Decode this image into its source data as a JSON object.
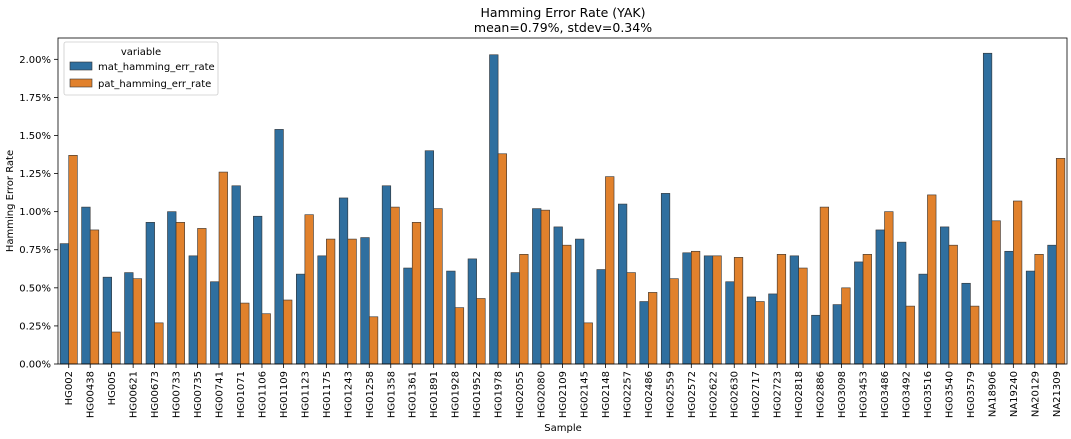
{
  "chart_data": {
    "type": "bar",
    "title": "Hamming Error Rate (YAK)",
    "subtitle": "mean=0.79%, stdev=0.34%",
    "xlabel": "Sample",
    "ylabel": "Hamming Error Rate",
    "ylim": [
      0,
      2.14
    ],
    "yticks": [
      "0.00%",
      "0.25%",
      "0.50%",
      "0.75%",
      "1.00%",
      "1.25%",
      "1.50%",
      "1.75%",
      "2.00%"
    ],
    "ytick_values": [
      0,
      0.25,
      0.5,
      0.75,
      1.0,
      1.25,
      1.5,
      1.75,
      2.0
    ],
    "legend": {
      "title": "variable",
      "position": "top-left"
    },
    "categories": [
      "HG002",
      "HG00438",
      "HG005",
      "HG00621",
      "HG00673",
      "HG00733",
      "HG00735",
      "HG00741",
      "HG01071",
      "HG01106",
      "HG01109",
      "HG01123",
      "HG01175",
      "HG01243",
      "HG01258",
      "HG01358",
      "HG01361",
      "HG01891",
      "HG01928",
      "HG01952",
      "HG01978",
      "HG02055",
      "HG02080",
      "HG02109",
      "HG02145",
      "HG02148",
      "HG02257",
      "HG02486",
      "HG02559",
      "HG02572",
      "HG02622",
      "HG02630",
      "HG02717",
      "HG02723",
      "HG02818",
      "HG02886",
      "HG03098",
      "HG03453",
      "HG03486",
      "HG03492",
      "HG03516",
      "HG03540",
      "HG03579",
      "NA18906",
      "NA19240",
      "NA20129",
      "NA21309"
    ],
    "series": [
      {
        "name": "mat_hamming_err_rate",
        "color": "#2f6f9f",
        "values": [
          0.79,
          1.03,
          0.57,
          0.6,
          0.93,
          1.0,
          0.71,
          0.54,
          1.17,
          0.97,
          1.54,
          0.59,
          0.71,
          1.09,
          0.83,
          1.17,
          0.63,
          1.4,
          0.61,
          0.69,
          2.03,
          0.6,
          1.02,
          0.9,
          0.82,
          0.62,
          1.05,
          0.41,
          1.12,
          0.73,
          0.71,
          0.54,
          0.44,
          0.46,
          0.71,
          0.32,
          0.39,
          0.67,
          0.88,
          0.8,
          0.59,
          0.9,
          0.53,
          2.04,
          0.74,
          0.61,
          0.78
        ]
      },
      {
        "name": "pat_hamming_err_rate",
        "color": "#e1812c",
        "values": [
          1.37,
          0.88,
          0.21,
          0.56,
          0.27,
          0.93,
          0.89,
          1.26,
          0.4,
          0.33,
          0.42,
          0.98,
          0.82,
          0.82,
          0.31,
          1.03,
          0.93,
          1.02,
          0.37,
          0.43,
          1.38,
          0.72,
          1.01,
          0.78,
          0.27,
          1.23,
          0.6,
          0.47,
          0.56,
          0.74,
          0.71,
          0.7,
          0.41,
          0.72,
          0.63,
          1.03,
          0.5,
          0.72,
          1.0,
          0.38,
          1.11,
          0.78,
          0.38,
          0.94,
          1.07,
          0.72,
          1.35
        ]
      }
    ]
  }
}
